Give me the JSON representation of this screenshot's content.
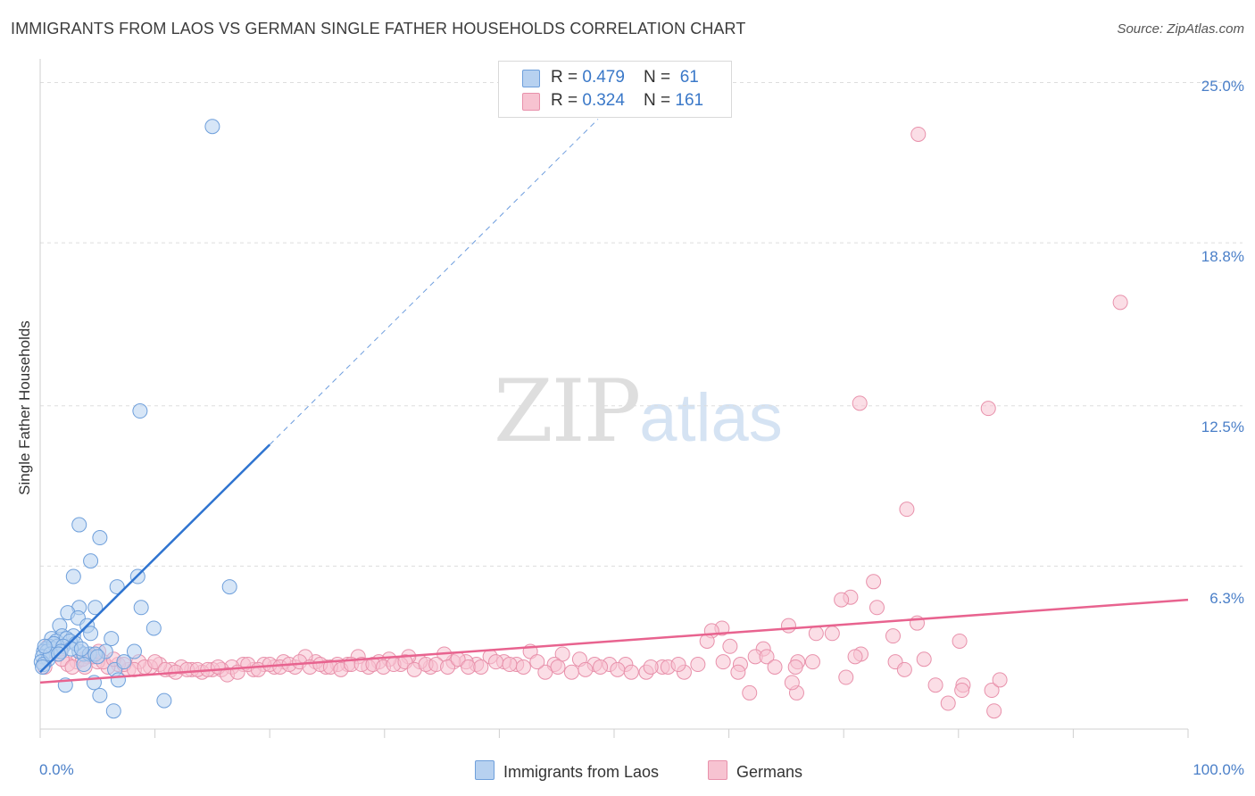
{
  "title": "IMMIGRANTS FROM LAOS VS GERMAN SINGLE FATHER HOUSEHOLDS CORRELATION CHART",
  "source": "Source: ZipAtlas.com",
  "watermark": {
    "part1": "ZIP",
    "part2": "atlas"
  },
  "legend": {
    "row1": {
      "r_label": "R = ",
      "r_value": "0.479",
      "n_label": "N = ",
      "n_value": " 61"
    },
    "row2": {
      "r_label": "R = ",
      "r_value": "0.324",
      "n_label": "N = ",
      "n_value": "161"
    }
  },
  "colors": {
    "blue_fill": "#b7d1f0",
    "blue_stroke": "#6e9fdb",
    "blue_line": "#2f74d0",
    "pink_fill": "#f7c3d1",
    "pink_stroke": "#e891ab",
    "pink_line": "#e8638f",
    "tick_text": "#4a7fc8",
    "grid": "#dddddd"
  },
  "chart_data": {
    "type": "scatter",
    "title": "IMMIGRANTS FROM LAOS VS GERMAN SINGLE FATHER HOUSEHOLDS CORRELATION CHART",
    "xlabel": "",
    "ylabel": "Single Father Households",
    "xlim": [
      0,
      100
    ],
    "ylim": [
      0,
      25.5
    ],
    "y_ticks": [
      {
        "value": 25.0,
        "label": "25.0%"
      },
      {
        "value": 18.8,
        "label": "18.8%"
      },
      {
        "value": 12.5,
        "label": "12.5%"
      },
      {
        "value": 6.3,
        "label": "6.3%"
      }
    ],
    "x_tick_labels": {
      "min": "0.0%",
      "max": "100.0%"
    },
    "x_tick_values": [
      0,
      10,
      20,
      30,
      40,
      50,
      60,
      70,
      80,
      90,
      100
    ],
    "series": [
      {
        "name": "Immigrants from Laos",
        "color": "blue",
        "R": 0.479,
        "N": 61,
        "trend": {
          "x0": 0,
          "y0": 2.2,
          "x1": 20,
          "y1": 11.0,
          "dash_to_x": 48.6
        },
        "points": [
          [
            15,
            23.3
          ],
          [
            8.7,
            12.3
          ],
          [
            3.4,
            7.9
          ],
          [
            5.2,
            7.4
          ],
          [
            4.4,
            6.5
          ],
          [
            2.9,
            5.9
          ],
          [
            8.5,
            5.9
          ],
          [
            16.5,
            5.5
          ],
          [
            6.7,
            5.5
          ],
          [
            4.8,
            4.7
          ],
          [
            8.8,
            4.7
          ],
          [
            3.4,
            4.7
          ],
          [
            2.4,
            4.5
          ],
          [
            3.3,
            4.3
          ],
          [
            1.7,
            4.0
          ],
          [
            4.1,
            4.0
          ],
          [
            9.9,
            3.9
          ],
          [
            4.4,
            3.7
          ],
          [
            1.9,
            3.6
          ],
          [
            2.9,
            3.6
          ],
          [
            6.2,
            3.5
          ],
          [
            1.0,
            3.5
          ],
          [
            1.4,
            3.4
          ],
          [
            2.3,
            3.5
          ],
          [
            2.6,
            3.4
          ],
          [
            0.8,
            3.2
          ],
          [
            0.5,
            3.1
          ],
          [
            1.1,
            3.1
          ],
          [
            1.5,
            3.2
          ],
          [
            0.3,
            3.0
          ],
          [
            0.6,
            3.0
          ],
          [
            3.4,
            3.0
          ],
          [
            8.2,
            3.0
          ],
          [
            5.7,
            3.0
          ],
          [
            3.8,
            2.9
          ],
          [
            4.3,
            2.9
          ],
          [
            4.8,
            2.9
          ],
          [
            0.2,
            2.8
          ],
          [
            0.7,
            2.7
          ],
          [
            0.1,
            2.6
          ],
          [
            0.3,
            2.5
          ],
          [
            0.2,
            2.4
          ],
          [
            3.8,
            2.5
          ],
          [
            6.5,
            2.3
          ],
          [
            2.2,
            1.7
          ],
          [
            4.7,
            1.8
          ],
          [
            6.8,
            1.9
          ],
          [
            5.2,
            1.3
          ],
          [
            10.8,
            1.1
          ],
          [
            6.4,
            0.7
          ],
          [
            1.2,
            3.3
          ],
          [
            2.0,
            3.2
          ],
          [
            0.9,
            2.9
          ],
          [
            3.1,
            3.3
          ],
          [
            1.8,
            3.0
          ],
          [
            2.7,
            3.1
          ],
          [
            0.4,
            3.2
          ],
          [
            1.6,
            2.9
          ],
          [
            5.0,
            2.8
          ],
          [
            3.6,
            3.1
          ],
          [
            7.3,
            2.6
          ]
        ]
      },
      {
        "name": "Germans",
        "color": "pink",
        "R": 0.324,
        "N": 161,
        "trend": {
          "x0": 0,
          "y0": 1.8,
          "x1": 100,
          "y1": 5.0
        },
        "points": [
          [
            76.5,
            23.0
          ],
          [
            94.1,
            16.5
          ],
          [
            71.4,
            12.6
          ],
          [
            82.6,
            12.4
          ],
          [
            75.5,
            8.5
          ],
          [
            72.6,
            5.7
          ],
          [
            70.6,
            5.1
          ],
          [
            69.8,
            5.0
          ],
          [
            72.9,
            4.7
          ],
          [
            76.4,
            4.1
          ],
          [
            65.2,
            4.0
          ],
          [
            59.4,
            3.9
          ],
          [
            69.0,
            3.7
          ],
          [
            67.6,
            3.7
          ],
          [
            58.5,
            3.8
          ],
          [
            74.3,
            3.6
          ],
          [
            58.1,
            3.4
          ],
          [
            80.1,
            3.4
          ],
          [
            63.0,
            3.1
          ],
          [
            60.1,
            3.2
          ],
          [
            71.5,
            2.9
          ],
          [
            71.0,
            2.8
          ],
          [
            74.5,
            2.6
          ],
          [
            77.0,
            2.7
          ],
          [
            62.3,
            2.8
          ],
          [
            63.3,
            2.8
          ],
          [
            66.0,
            2.6
          ],
          [
            67.3,
            2.6
          ],
          [
            64.0,
            2.4
          ],
          [
            65.8,
            2.4
          ],
          [
            61.0,
            2.5
          ],
          [
            59.5,
            2.6
          ],
          [
            60.8,
            2.2
          ],
          [
            70.2,
            2.0
          ],
          [
            75.3,
            2.3
          ],
          [
            80.4,
            1.7
          ],
          [
            78.0,
            1.7
          ],
          [
            82.9,
            1.5
          ],
          [
            80.3,
            1.5
          ],
          [
            79.1,
            1.0
          ],
          [
            83.6,
            1.9
          ],
          [
            61.8,
            1.4
          ],
          [
            65.9,
            1.4
          ],
          [
            65.5,
            1.8
          ],
          [
            83.1,
            0.7
          ],
          [
            56.1,
            2.2
          ],
          [
            54.2,
            2.4
          ],
          [
            52.8,
            2.2
          ],
          [
            51.0,
            2.5
          ],
          [
            49.6,
            2.5
          ],
          [
            48.3,
            2.5
          ],
          [
            47.0,
            2.7
          ],
          [
            45.5,
            2.9
          ],
          [
            44.8,
            2.5
          ],
          [
            44.0,
            2.2
          ],
          [
            42.7,
            3.0
          ],
          [
            41.5,
            2.5
          ],
          [
            40.4,
            2.6
          ],
          [
            39.2,
            2.8
          ],
          [
            38.0,
            2.5
          ],
          [
            37.1,
            2.6
          ],
          [
            36.0,
            2.6
          ],
          [
            35.2,
            2.9
          ],
          [
            34.0,
            2.4
          ],
          [
            33.1,
            2.6
          ],
          [
            32.1,
            2.8
          ],
          [
            31.4,
            2.5
          ],
          [
            30.4,
            2.7
          ],
          [
            29.5,
            2.6
          ],
          [
            28.6,
            2.4
          ],
          [
            27.7,
            2.8
          ],
          [
            26.8,
            2.5
          ],
          [
            25.9,
            2.5
          ],
          [
            24.9,
            2.4
          ],
          [
            24.0,
            2.6
          ],
          [
            23.1,
            2.8
          ],
          [
            22.2,
            2.4
          ],
          [
            21.2,
            2.6
          ],
          [
            20.4,
            2.4
          ],
          [
            19.5,
            2.5
          ],
          [
            18.6,
            2.3
          ],
          [
            17.7,
            2.5
          ],
          [
            16.7,
            2.4
          ],
          [
            15.8,
            2.3
          ],
          [
            15.0,
            2.3
          ],
          [
            14.1,
            2.2
          ],
          [
            13.2,
            2.3
          ],
          [
            12.3,
            2.4
          ],
          [
            11.4,
            2.3
          ],
          [
            10.4,
            2.5
          ],
          [
            9.6,
            2.4
          ],
          [
            8.6,
            2.6
          ],
          [
            7.7,
            2.3
          ],
          [
            6.8,
            2.5
          ],
          [
            5.9,
            2.4
          ],
          [
            5.0,
            2.6
          ],
          [
            4.1,
            2.8
          ],
          [
            3.2,
            2.6
          ],
          [
            2.4,
            2.5
          ],
          [
            1.5,
            2.9
          ],
          [
            0.7,
            3.2
          ],
          [
            1.1,
            3.0
          ],
          [
            1.9,
            2.7
          ],
          [
            2.8,
            2.4
          ],
          [
            3.7,
            2.7
          ],
          [
            4.6,
            2.8
          ],
          [
            5.5,
            2.6
          ],
          [
            6.4,
            2.7
          ],
          [
            7.3,
            2.5
          ],
          [
            8.2,
            2.3
          ],
          [
            9.1,
            2.4
          ],
          [
            10.0,
            2.6
          ],
          [
            10.9,
            2.3
          ],
          [
            11.8,
            2.2
          ],
          [
            12.8,
            2.3
          ],
          [
            13.7,
            2.3
          ],
          [
            14.6,
            2.3
          ],
          [
            15.5,
            2.4
          ],
          [
            16.3,
            2.1
          ],
          [
            17.2,
            2.2
          ],
          [
            18.1,
            2.5
          ],
          [
            19.0,
            2.3
          ],
          [
            20.0,
            2.5
          ],
          [
            20.9,
            2.4
          ],
          [
            21.7,
            2.5
          ],
          [
            22.6,
            2.6
          ],
          [
            23.5,
            2.4
          ],
          [
            24.4,
            2.5
          ],
          [
            25.3,
            2.4
          ],
          [
            26.2,
            2.3
          ],
          [
            27.1,
            2.5
          ],
          [
            28.0,
            2.5
          ],
          [
            29.0,
            2.5
          ],
          [
            29.9,
            2.4
          ],
          [
            30.8,
            2.5
          ],
          [
            31.8,
            2.6
          ],
          [
            32.6,
            2.3
          ],
          [
            33.6,
            2.5
          ],
          [
            34.5,
            2.5
          ],
          [
            35.5,
            2.4
          ],
          [
            36.4,
            2.7
          ],
          [
            37.3,
            2.4
          ],
          [
            38.4,
            2.4
          ],
          [
            39.7,
            2.6
          ],
          [
            40.9,
            2.5
          ],
          [
            42.1,
            2.4
          ],
          [
            43.3,
            2.6
          ],
          [
            45.1,
            2.4
          ],
          [
            46.3,
            2.2
          ],
          [
            47.5,
            2.3
          ],
          [
            48.8,
            2.4
          ],
          [
            50.3,
            2.3
          ],
          [
            51.5,
            2.2
          ],
          [
            53.2,
            2.4
          ],
          [
            54.7,
            2.4
          ],
          [
            55.6,
            2.5
          ],
          [
            57.3,
            2.5
          ],
          [
            0.4,
            2.4
          ],
          [
            1.8,
            3.1
          ],
          [
            3.9,
            2.4
          ],
          [
            5.1,
            3.0
          ]
        ]
      }
    ]
  },
  "bottom_legend": {
    "item1": "Immigrants from Laos",
    "item2": "Germans"
  }
}
